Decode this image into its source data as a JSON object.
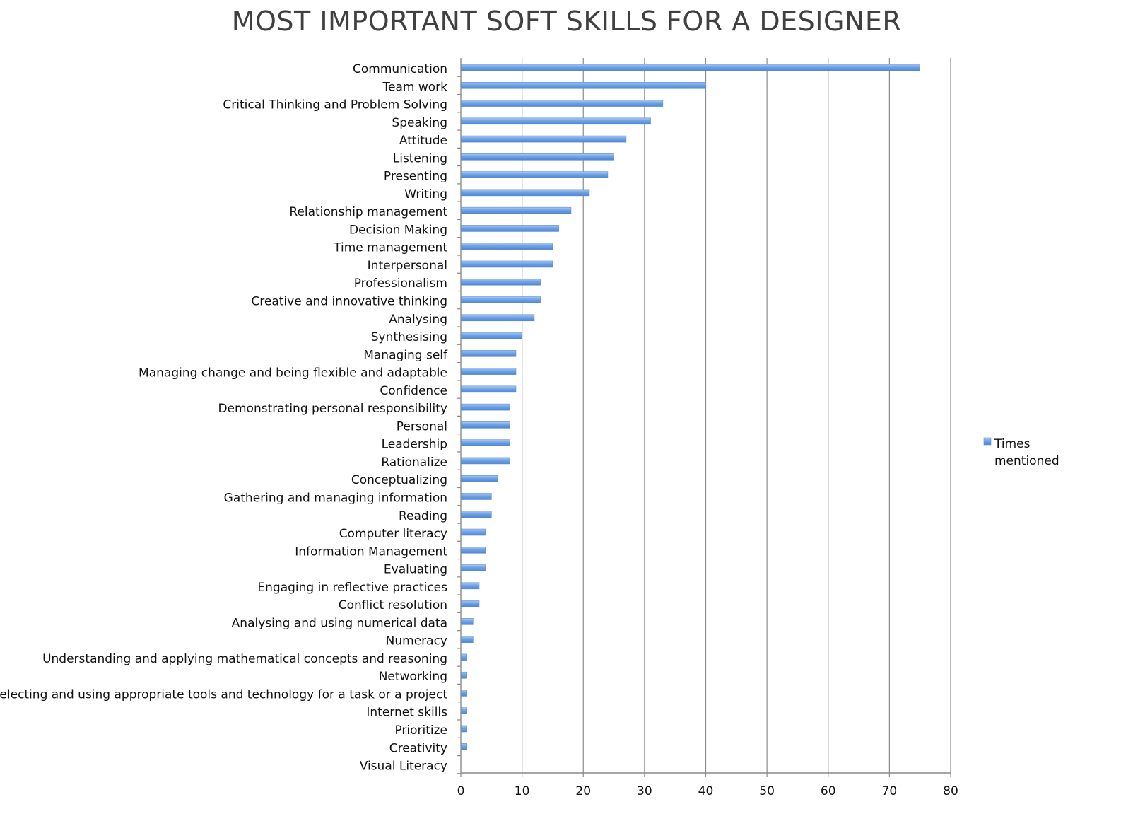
{
  "chart_data": {
    "type": "bar",
    "orientation": "horizontal",
    "title": "MOST IMPORTANT SOFT SKILLS FOR A DESIGNER",
    "xlabel": "",
    "ylabel": "",
    "xlim": [
      0,
      80
    ],
    "x_ticks": [
      0,
      10,
      20,
      30,
      40,
      50,
      60,
      70,
      80
    ],
    "grid": "vertical",
    "legend_position": "right",
    "bar_color": "#6fa3e6",
    "categories": [
      "Communication",
      "Team work",
      "Critical Thinking and Problem Solving",
      "Speaking",
      "Attitude",
      "Listening",
      "Presenting",
      "Writing",
      "Relationship management",
      "Decision Making",
      "Time management",
      "Interpersonal",
      "Professionalism",
      "Creative and innovative thinking",
      "Analysing",
      "Synthesising",
      "Managing self",
      "Managing change and being flexible and adaptable",
      "Confidence",
      "Demonstrating personal responsibility",
      "Personal",
      "Leadership",
      "Rationalize",
      "Conceptualizing",
      "Gathering and managing information",
      "Reading",
      "Computer literacy",
      "Information Management",
      "Evaluating",
      "Engaging in reflective practices",
      "Conflict resolution",
      "Analysing and using numerical data",
      "Numeracy",
      "Understanding and applying mathematical concepts and reasoning",
      "Networking",
      "Selecting and using appropriate tools and technology for a task or a project",
      "Internet skills",
      "Prioritize",
      "Creativity",
      "Visual Literacy"
    ],
    "series": [
      {
        "name": "Times mentioned",
        "legend_lines": [
          "Times",
          "mentioned"
        ],
        "values": [
          75,
          40,
          33,
          31,
          27,
          25,
          24,
          21,
          18,
          16,
          15,
          15,
          13,
          13,
          12,
          10,
          9,
          9,
          9,
          8,
          8,
          8,
          8,
          6,
          5,
          5,
          4,
          4,
          4,
          3,
          3,
          2,
          2,
          1,
          1,
          1,
          1,
          1,
          1,
          0
        ]
      }
    ]
  }
}
